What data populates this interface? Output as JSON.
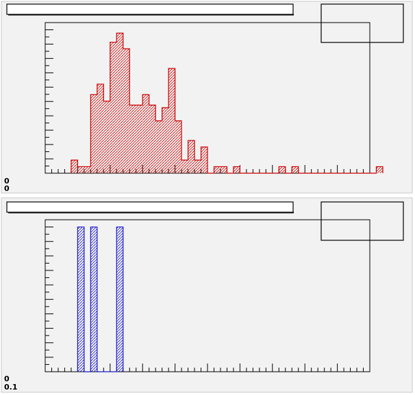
{
  "colors": {
    "pad_background": "#f2f2f2",
    "frame": "#000000",
    "title_box_fill": "#ffffff",
    "stats_box_fill": "#f2f2f2",
    "top_hist": "#cc0000",
    "bottom_hist": "#1a1acc"
  },
  "chart_data": [
    {
      "type": "bar",
      "subtype": "histogram",
      "title": "",
      "xlabel": "",
      "ylabel": "",
      "fill_style": "hatched",
      "color": "#cc0000",
      "xlim": [
        0,
        50
      ],
      "ylim": [
        0,
        11.5
      ],
      "bin_width": 1,
      "x_start": 4,
      "values": [
        1,
        0.5,
        0.5,
        6,
        6.8,
        5.5,
        10,
        10.7,
        9.5,
        5.2,
        5.2,
        6,
        5.2,
        4,
        5,
        8,
        4,
        1,
        2.5,
        1,
        2,
        0,
        0.5,
        0.5,
        0,
        0.5,
        0,
        0,
        0,
        0,
        0,
        0,
        0.5,
        0,
        0.5,
        0,
        0,
        0,
        0,
        0,
        0,
        0,
        0,
        0,
        0,
        0,
        0,
        0.5
      ],
      "tick_labels_y": [
        "0",
        "0"
      ]
    },
    {
      "type": "bar",
      "subtype": "histogram",
      "title": "",
      "xlabel": "",
      "ylabel": "",
      "fill_style": "hatched",
      "color": "#1a1acc",
      "xlim": [
        0,
        50
      ],
      "ylim": [
        0,
        1.05
      ],
      "bin_width": 1,
      "x_start": 5,
      "values": [
        1,
        0,
        1,
        0,
        0,
        0,
        1
      ],
      "tick_labels_y": [
        "0",
        "0.1"
      ]
    }
  ]
}
